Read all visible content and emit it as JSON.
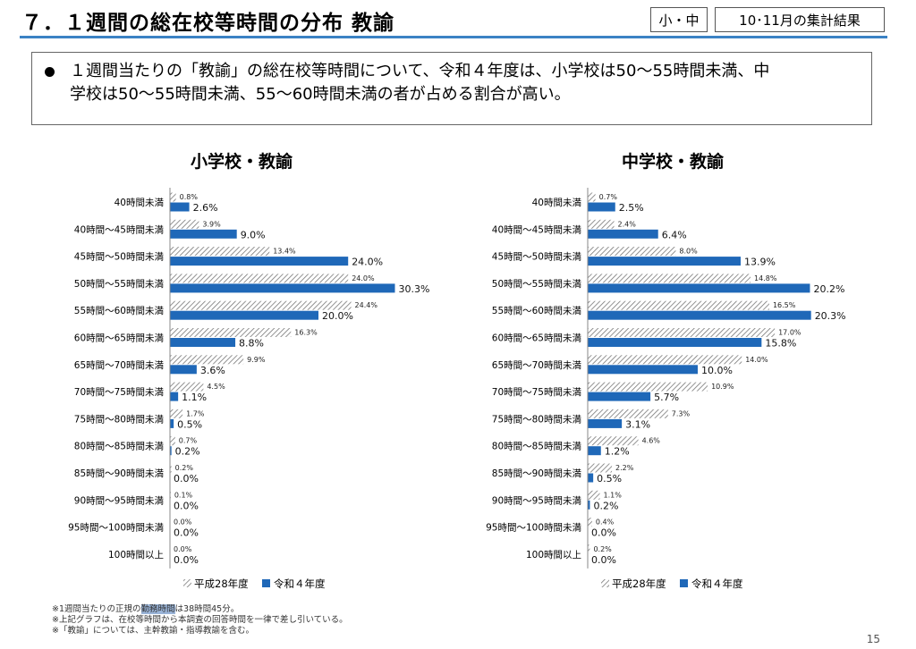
{
  "header": {
    "title": "７．１週間の総在校等時間の分布 教諭",
    "tag_school": "小・中",
    "tag_period": "10･11月の集計結果"
  },
  "summary": {
    "text_lines": [
      "１週間当たりの「教諭」の総在校等時間について、令和４年度は、小学校は50～55時間未満、中",
      "学校は50～55時間未満、55～60時間未満の者が占める割合が高い。"
    ]
  },
  "colors": {
    "r4": "#1f68b8",
    "h28_line": "#777777",
    "accent": "#3b82c4"
  },
  "chart_data": [
    {
      "type": "bar",
      "orientation": "horizontal",
      "title": "小学校・教諭",
      "categories": [
        "40時間未満",
        "40時間～45時間未満",
        "45時間～50時間未満",
        "50時間～55時間未満",
        "55時間～60時間未満",
        "60時間～65時間未満",
        "65時間～70時間未満",
        "70時間～75時間未満",
        "75時間～80時間未満",
        "80時間～85時間未満",
        "85時間～90時間未満",
        "90時間～95時間未満",
        "95時間～100時間未満",
        "100時間以上"
      ],
      "series": [
        {
          "name": "平成28年度",
          "pattern": "hatched",
          "values": [
            0.8,
            3.9,
            13.4,
            24.0,
            24.4,
            16.3,
            9.9,
            4.5,
            1.7,
            0.7,
            0.2,
            0.1,
            0.0,
            0.0
          ],
          "labels": [
            "0.8%",
            "3.9%",
            "13.4%",
            "24.0%",
            "24.4%",
            "16.3%",
            "9.9%",
            "4.5%",
            "1.7%",
            "0.7%",
            "0.2%",
            "0.1%",
            "0.0%",
            "0.0%"
          ]
        },
        {
          "name": "令和４年度",
          "pattern": "solid",
          "values": [
            2.6,
            9.0,
            24.0,
            30.3,
            20.0,
            8.8,
            3.6,
            1.1,
            0.5,
            0.2,
            0.0,
            0.0,
            0.0,
            0.0
          ],
          "labels": [
            "2.6%",
            "9.0%",
            "24.0%",
            "30.3%",
            "20.0%",
            "8.8%",
            "3.6%",
            "1.1%",
            "0.5%",
            "0.2%",
            "0.0%",
            "0.0%",
            "0.0%",
            "0.0%"
          ]
        }
      ],
      "legend": "bottom"
    },
    {
      "type": "bar",
      "orientation": "horizontal",
      "title": "中学校・教諭",
      "categories": [
        "40時間未満",
        "40時間～45時間未満",
        "45時間～50時間未満",
        "50時間～55時間未満",
        "55時間～60時間未満",
        "60時間～65時間未満",
        "65時間～70時間未満",
        "70時間～75時間未満",
        "75時間～80時間未満",
        "80時間～85時間未満",
        "85時間～90時間未満",
        "90時間～95時間未満",
        "95時間～100時間未満",
        "100時間以上"
      ],
      "series": [
        {
          "name": "平成28年度",
          "pattern": "hatched",
          "values": [
            0.7,
            2.4,
            8.0,
            14.8,
            16.5,
            17.0,
            14.0,
            10.9,
            7.3,
            4.6,
            2.2,
            1.1,
            0.4,
            0.2
          ],
          "labels": [
            "0.7%",
            "2.4%",
            "8.0%",
            "14.8%",
            "16.5%",
            "17.0%",
            "14.0%",
            "10.9%",
            "7.3%",
            "4.6%",
            "2.2%",
            "1.1%",
            "0.4%",
            "0.2%"
          ]
        },
        {
          "name": "令和４年度",
          "pattern": "solid",
          "values": [
            2.5,
            6.4,
            13.9,
            20.2,
            20.3,
            15.8,
            10.0,
            5.7,
            3.1,
            1.2,
            0.5,
            0.2,
            0.0,
            0.0
          ],
          "labels": [
            "2.5%",
            "6.4%",
            "13.9%",
            "20.2%",
            "20.3%",
            "15.8%",
            "10.0%",
            "5.7%",
            "3.1%",
            "1.2%",
            "0.5%",
            "0.2%",
            "0.0%",
            "0.0%"
          ]
        }
      ],
      "legend": "bottom"
    }
  ],
  "notes": {
    "line1_pre": "※1週間当たりの正規の",
    "line1_hl": "勤務時間",
    "line1_post": "は38時間45分。",
    "line2": "※上記グラフは、在校等時間から本調査の回答時間を一律で差し引いている。",
    "line3": "※「教諭」については、主幹教諭・指導教諭を含む。"
  },
  "page_number": "15"
}
